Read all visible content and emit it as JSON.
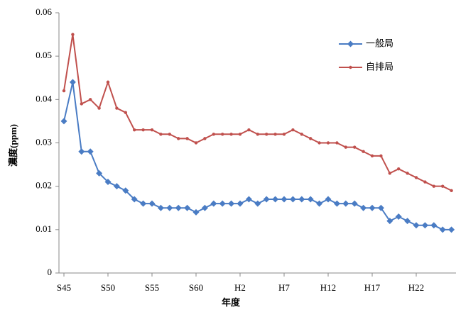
{
  "chart_data": {
    "type": "line",
    "x_label": "年度",
    "y_label": "濃度(ppm)",
    "categories": [
      "S45",
      null,
      null,
      null,
      null,
      "S50",
      null,
      null,
      null,
      null,
      "S55",
      null,
      null,
      null,
      null,
      "S60",
      null,
      null,
      null,
      null,
      "H2",
      null,
      null,
      null,
      null,
      "H7",
      null,
      null,
      null,
      null,
      "H12",
      null,
      null,
      null,
      null,
      "H17",
      null,
      null,
      null,
      null,
      "H22",
      null,
      null,
      null,
      null
    ],
    "series": [
      {
        "name": "一般局",
        "color": "#4a7cc4",
        "marker": "diamond",
        "values": [
          0.035,
          0.044,
          0.028,
          0.028,
          0.023,
          0.021,
          0.02,
          0.019,
          0.017,
          0.016,
          0.016,
          0.015,
          0.015,
          0.015,
          0.015,
          0.014,
          0.015,
          0.016,
          0.016,
          0.016,
          0.016,
          0.017,
          0.016,
          0.017,
          0.017,
          0.017,
          0.017,
          0.017,
          0.017,
          0.016,
          0.017,
          0.016,
          0.016,
          0.016,
          0.015,
          0.015,
          0.015,
          0.012,
          0.013,
          0.012,
          0.011,
          0.011,
          0.011,
          0.01,
          0.01
        ]
      },
      {
        "name": "自排局",
        "color": "#c0504d",
        "marker": "circle",
        "values": [
          0.042,
          0.055,
          0.039,
          0.04,
          0.038,
          0.044,
          0.038,
          0.037,
          0.033,
          0.033,
          0.033,
          0.032,
          0.032,
          0.031,
          0.031,
          0.03,
          0.031,
          0.032,
          0.032,
          0.032,
          0.032,
          0.033,
          0.032,
          0.032,
          0.032,
          0.032,
          0.033,
          0.032,
          0.031,
          0.03,
          0.03,
          0.03,
          0.029,
          0.029,
          0.028,
          0.027,
          0.027,
          0.023,
          0.024,
          0.023,
          0.022,
          0.021,
          0.02,
          0.02,
          0.019
        ]
      }
    ],
    "ylim": [
      0,
      0.06
    ],
    "yticks": [
      0,
      0.01,
      0.02,
      0.03,
      0.04,
      0.05,
      0.06
    ],
    "grid": false,
    "legend": "upper right"
  }
}
